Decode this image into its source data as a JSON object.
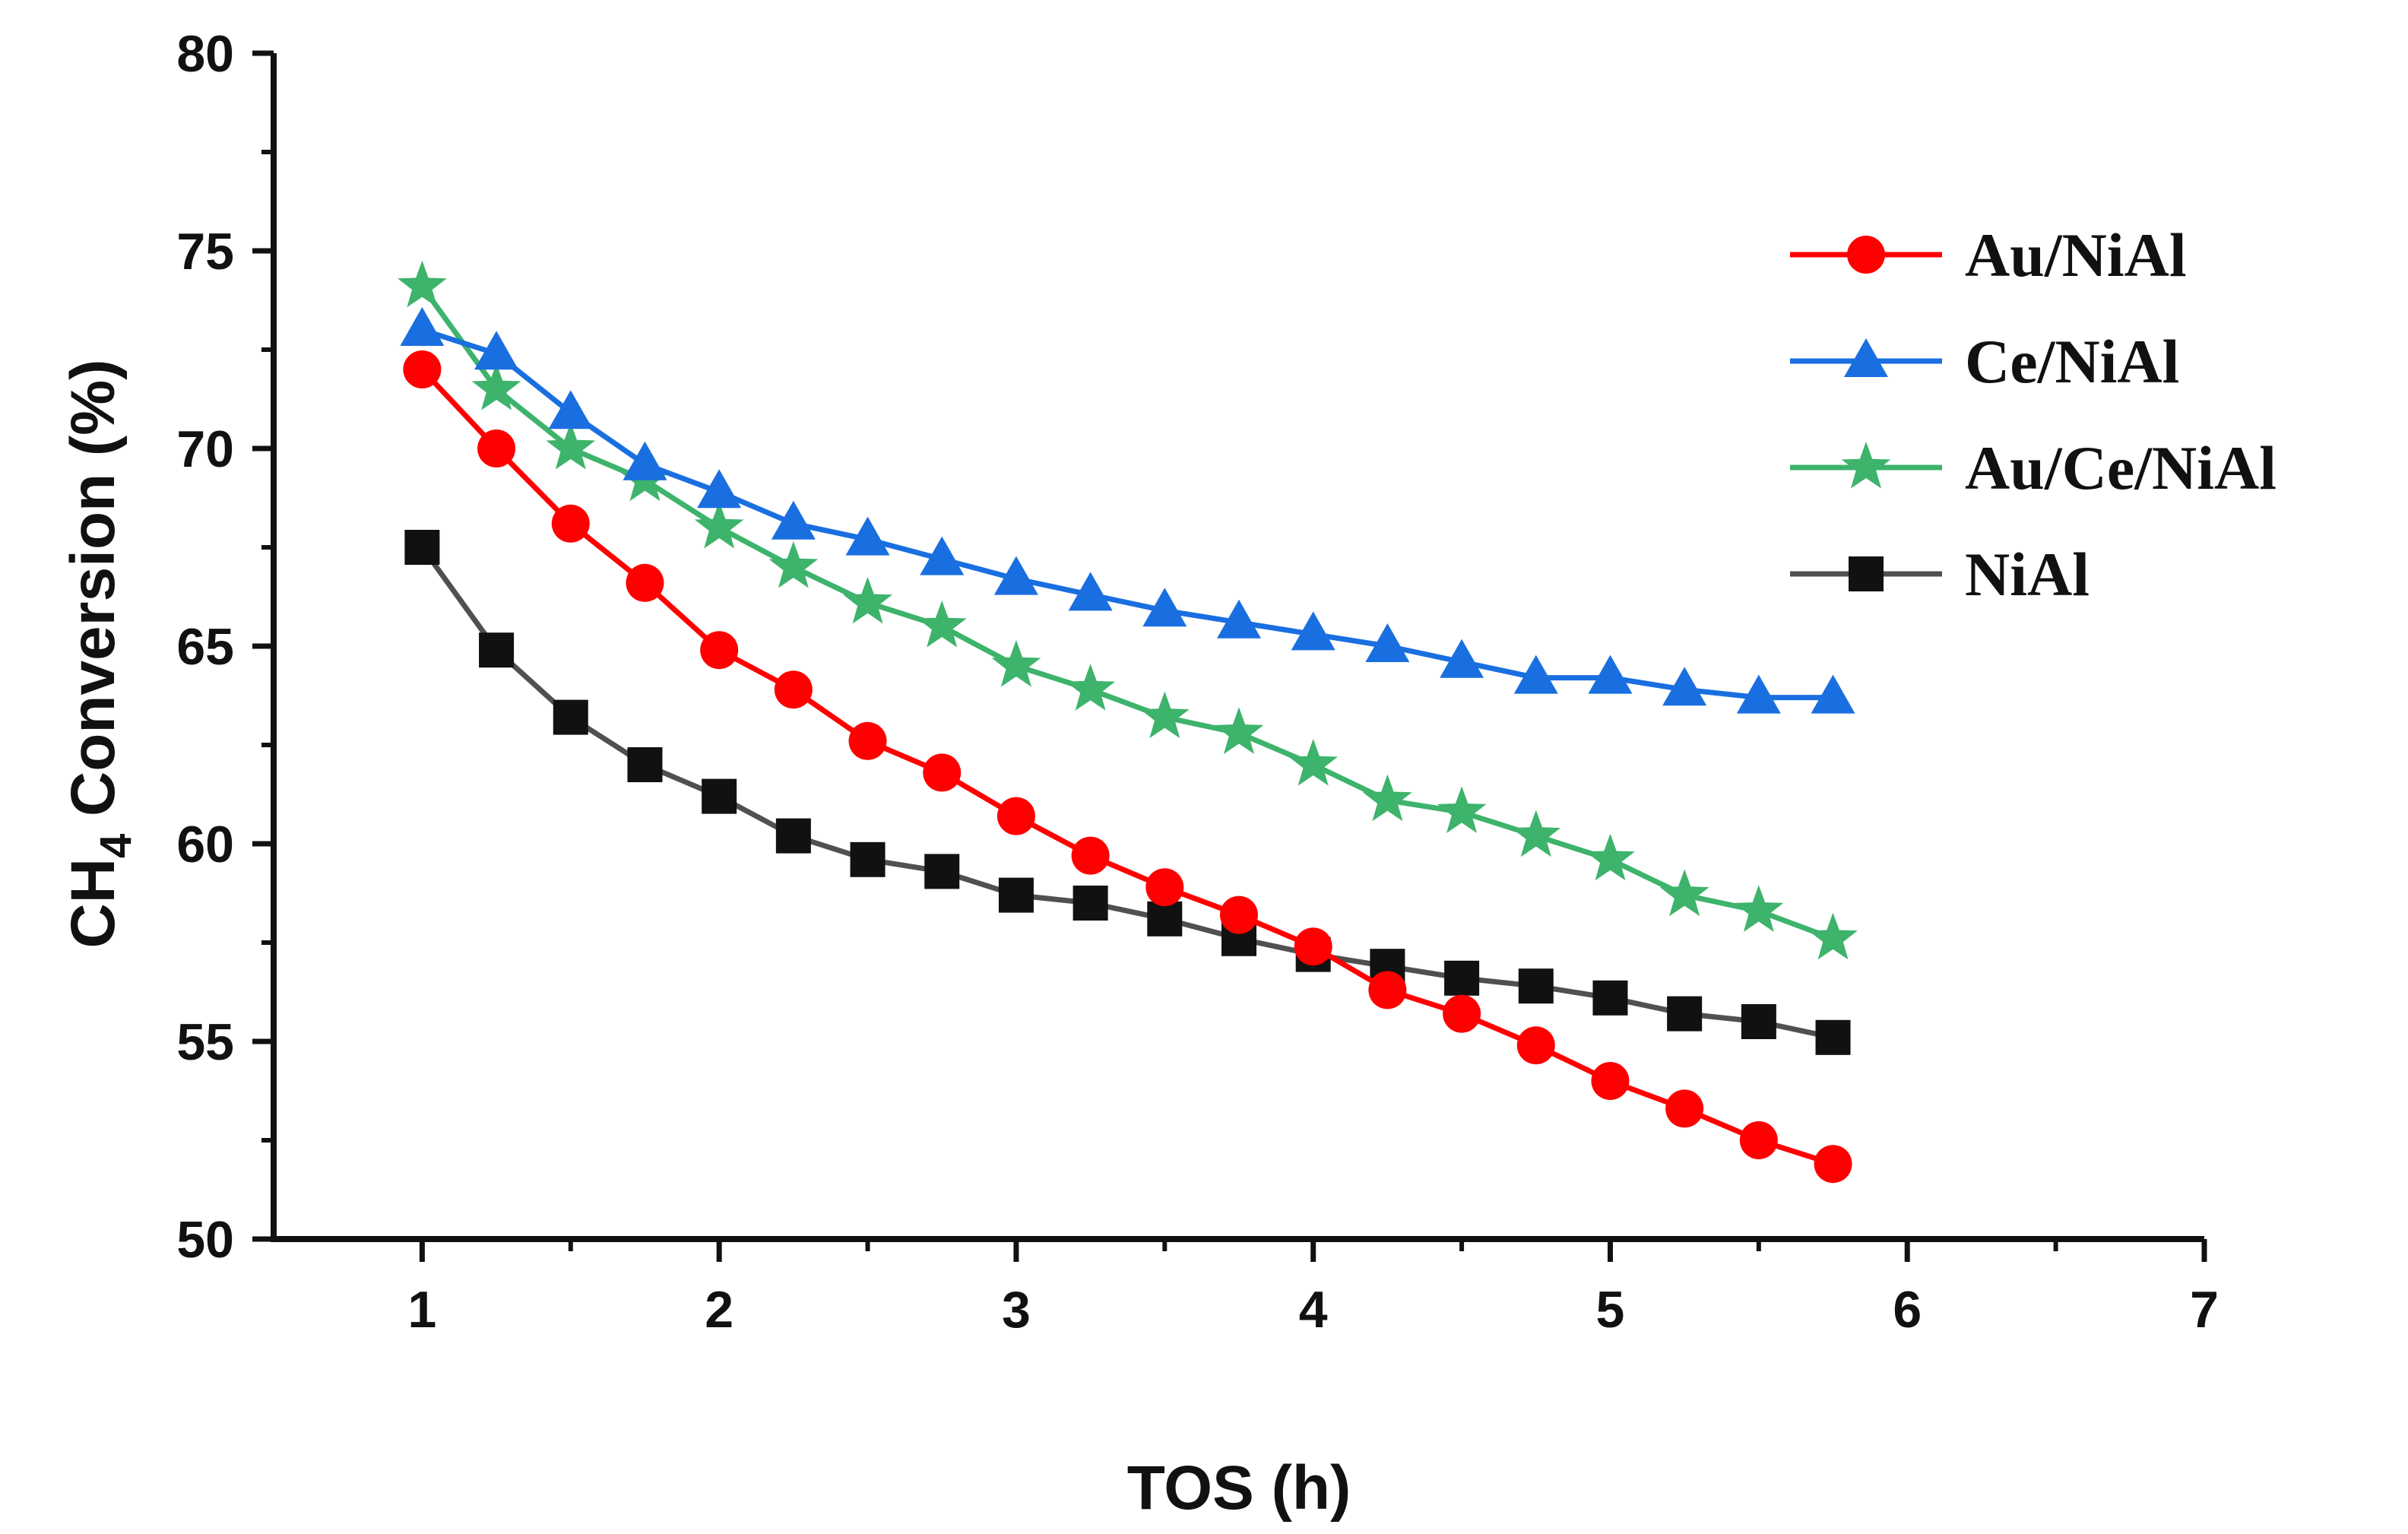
{
  "chart_data": {
    "type": "line",
    "title": "",
    "xlabel": "TOS (h)",
    "ylabel": {
      "prefix": "CH",
      "subscript": "4",
      "suffix": " Conversion (%)"
    },
    "xlim": [
      0.5,
      7
    ],
    "ylim": [
      50,
      80
    ],
    "xticks": [
      1,
      2,
      3,
      4,
      5,
      6,
      7
    ],
    "xtick_labels": [
      "1",
      "2",
      "3",
      "4",
      "5",
      "6",
      "7"
    ],
    "yticks": [
      50,
      55,
      60,
      65,
      70,
      75,
      80
    ],
    "ytick_labels": [
      "50",
      "55",
      "60",
      "65",
      "70",
      "75",
      "80"
    ],
    "grid": false,
    "legend_position": "top-right",
    "x": [
      1,
      1.25,
      1.5,
      1.75,
      2,
      2.25,
      2.5,
      2.75,
      3,
      3.25,
      3.5,
      3.75,
      4,
      4.25,
      4.5,
      4.75,
      5,
      5.25,
      5.5,
      5.75
    ],
    "series": [
      {
        "name": "Au/NiAl",
        "color": "#ff0000",
        "marker": "circle",
        "values": [
          72.0,
          70.0,
          68.1,
          66.6,
          64.9,
          63.9,
          62.6,
          61.8,
          60.7,
          59.7,
          58.9,
          58.2,
          57.4,
          56.3,
          55.7,
          54.9,
          54.0,
          53.3,
          52.5,
          51.9
        ]
      },
      {
        "name": "Ce/NiAl",
        "color": "#1a6fe0",
        "marker": "triangle",
        "values": [
          73.0,
          72.4,
          70.9,
          69.6,
          68.9,
          68.1,
          67.7,
          67.2,
          66.7,
          66.3,
          65.9,
          65.6,
          65.3,
          65.0,
          64.6,
          64.2,
          64.2,
          63.9,
          63.7,
          63.7
        ]
      },
      {
        "name": "Au/Ce/NiAl",
        "color": "#3db36b",
        "marker": "star",
        "values": [
          74.1,
          71.5,
          70.0,
          69.2,
          68.0,
          67.0,
          66.1,
          65.5,
          64.5,
          63.9,
          63.2,
          62.8,
          62.0,
          61.1,
          60.8,
          60.2,
          59.6,
          58.7,
          58.3,
          57.6
        ]
      },
      {
        "name": "NiAl",
        "color": "#111111",
        "line_color": "#505050",
        "marker": "square",
        "values": [
          67.5,
          64.9,
          63.2,
          62.0,
          61.2,
          60.2,
          59.6,
          59.3,
          58.7,
          58.5,
          58.1,
          57.6,
          57.2,
          56.9,
          56.6,
          56.4,
          56.1,
          55.7,
          55.5,
          55.1
        ]
      }
    ]
  }
}
